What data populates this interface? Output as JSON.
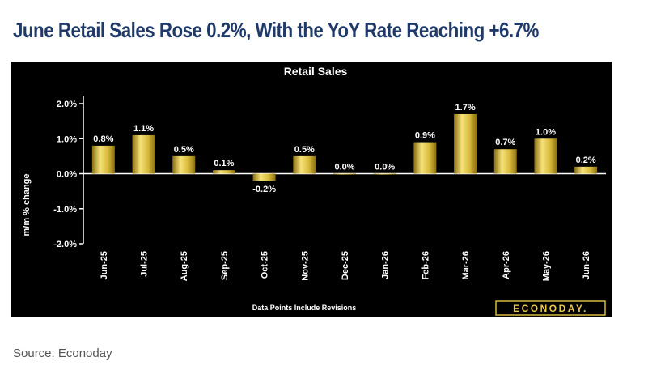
{
  "headline": "June Retail Sales Rose 0.2%, With the YoY Rate Reaching +6.7%",
  "source": "Source: Econoday",
  "colors": {
    "headline": "#1f3a68",
    "panel_background": "#000000",
    "bar_gradient_light": "#f6e27a",
    "bar_gradient_mid": "#d7b93a",
    "bar_gradient_dark": "#8a6f10",
    "text": "#ffffff"
  },
  "chart_data": {
    "type": "bar",
    "title": "Retail Sales",
    "ylabel": "m/m % change",
    "footnote": "Data Points Include Revisions",
    "brand": "ECONODAY.",
    "categories": [
      "Jun-25",
      "Jul-25",
      "Aug-25",
      "Sep-25",
      "Oct-25",
      "Nov-25",
      "Dec-25",
      "Jan-26",
      "Feb-26",
      "Mar-26",
      "Apr-26",
      "May-26",
      "Jun-26"
    ],
    "values": [
      0.8,
      1.1,
      0.5,
      0.1,
      -0.2,
      0.5,
      0.0,
      0.0,
      0.9,
      1.7,
      0.7,
      1.0,
      0.2
    ],
    "data_labels": [
      "0.8%",
      "1.1%",
      "0.5%",
      "0.1%",
      "-0.2%",
      "0.5%",
      "0.0%",
      "0.0%",
      "0.9%",
      "1.7%",
      "0.7%",
      "1.0%",
      "0.2%"
    ],
    "yticks": [
      2.0,
      1.0,
      0.0,
      -1.0,
      -2.0
    ],
    "ytick_labels": [
      "2.0%",
      "1.0%",
      "0.0%",
      "-1.0%",
      "-2.0%"
    ],
    "ylim": [
      -2.0,
      2.0
    ],
    "grid": false,
    "legend": "none"
  }
}
